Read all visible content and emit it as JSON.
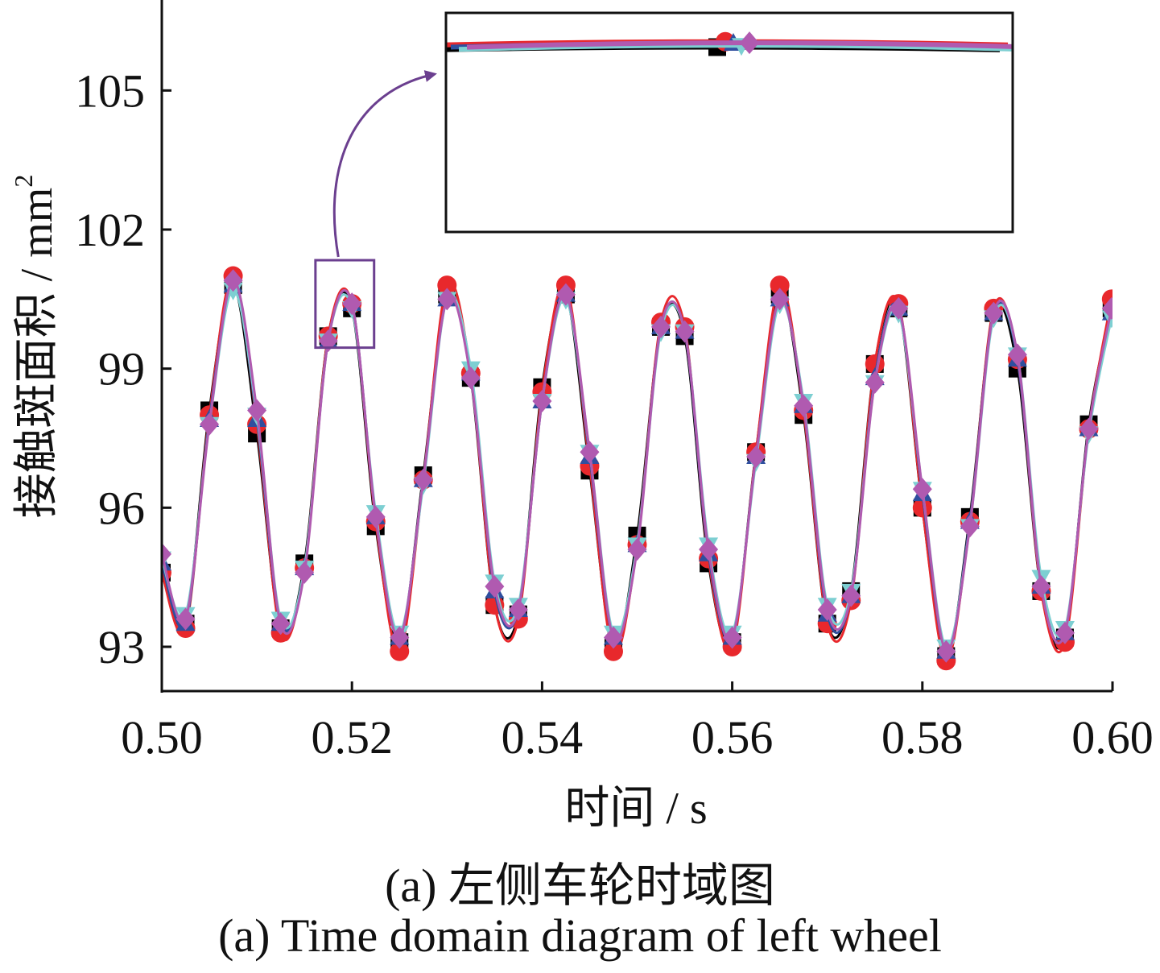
{
  "figure": {
    "caption_zh": "(a) 左侧车轮时域图",
    "caption_en": "(a) Time domain diagram of left wheel"
  },
  "chart_data": {
    "type": "line",
    "xlabel": "时间 / s",
    "ylabel": "接触斑面积 / mm",
    "ylabel_superscript": "2",
    "xlim": [
      0.5,
      0.6
    ],
    "ylim": [
      92.0,
      107.5
    ],
    "x_ticks": [
      0.5,
      0.52,
      0.54,
      0.56,
      0.58,
      0.6
    ],
    "x_tick_labels": [
      "0.50",
      "0.52",
      "0.54",
      "0.56",
      "0.58",
      "0.60"
    ],
    "y_ticks": [
      93,
      96,
      99,
      102,
      105
    ],
    "y_tick_labels": [
      "93",
      "96",
      "99",
      "102",
      "105"
    ],
    "grid": false,
    "inset": {
      "zoom_region": {
        "x": [
          0.5165,
          0.5225
        ],
        "y": [
          99.8,
          101.2
        ]
      },
      "description_colors": [
        "#000000",
        "#e8282c",
        "#2f4e9e",
        "#b05ab0",
        "#7dcfd2"
      ]
    },
    "series": [
      {
        "color": "#000000",
        "marker": "square",
        "offset": -0.1,
        "x": [
          0.5,
          0.5025,
          0.505,
          0.5075,
          0.51,
          0.5125,
          0.515,
          0.5175,
          0.52,
          0.5225,
          0.525,
          0.5275,
          0.53,
          0.5325,
          0.535,
          0.5375,
          0.54,
          0.5425,
          0.545,
          0.5475,
          0.55,
          0.5525,
          0.555,
          0.5575,
          0.56,
          0.5625,
          0.565,
          0.5675,
          0.57,
          0.5725,
          0.575,
          0.5775,
          0.58,
          0.5825,
          0.585,
          0.5875,
          0.59,
          0.5925,
          0.595,
          0.5975,
          0.5999
        ],
        "y": [
          94.6,
          93.5,
          98.1,
          100.8,
          97.6,
          93.4,
          94.8,
          99.7,
          100.3,
          95.6,
          93.1,
          96.7,
          100.6,
          98.8,
          93.9,
          93.7,
          98.6,
          100.6,
          96.8,
          93.0,
          95.4,
          99.9,
          99.7,
          94.8,
          93.1,
          97.2,
          100.6,
          98.0,
          93.5,
          94.2,
          99.1,
          100.3,
          96.0,
          92.8,
          95.8,
          100.2,
          99.0,
          94.2,
          93.2,
          97.8,
          100.3
        ]
      },
      {
        "color": "#e8282c",
        "marker": "circle",
        "offset": 0.05,
        "x": [
          0.5,
          0.5025,
          0.505,
          0.5075,
          0.51,
          0.5125,
          0.515,
          0.5175,
          0.52,
          0.5225,
          0.525,
          0.5275,
          0.53,
          0.5325,
          0.535,
          0.5375,
          0.54,
          0.5425,
          0.545,
          0.5475,
          0.55,
          0.5525,
          0.555,
          0.5575,
          0.56,
          0.5625,
          0.565,
          0.5675,
          0.57,
          0.5725,
          0.575,
          0.5775,
          0.58,
          0.5825,
          0.585,
          0.5875,
          0.59,
          0.5925,
          0.595,
          0.5975,
          0.5999
        ],
        "y": [
          94.6,
          93.4,
          98.0,
          101.0,
          97.8,
          93.3,
          94.7,
          99.7,
          100.4,
          95.7,
          92.9,
          96.6,
          100.8,
          98.9,
          93.9,
          93.6,
          98.5,
          100.8,
          96.9,
          92.9,
          95.2,
          100.0,
          99.9,
          94.9,
          93.0,
          97.2,
          100.8,
          98.1,
          93.5,
          94.0,
          99.1,
          100.4,
          96.0,
          92.7,
          95.7,
          100.3,
          99.2,
          94.2,
          93.1,
          97.7,
          100.5
        ]
      },
      {
        "color": "#2f4e9e",
        "marker": "triangle-up",
        "offset": 0.0,
        "x": [
          0.5,
          0.5025,
          0.505,
          0.5075,
          0.51,
          0.5125,
          0.515,
          0.5175,
          0.52,
          0.5225,
          0.525,
          0.5275,
          0.53,
          0.5325,
          0.535,
          0.5375,
          0.54,
          0.5425,
          0.545,
          0.5475,
          0.55,
          0.5525,
          0.555,
          0.5575,
          0.56,
          0.5625,
          0.565,
          0.5675,
          0.57,
          0.5725,
          0.575,
          0.5775,
          0.58,
          0.5825,
          0.585,
          0.5875,
          0.59,
          0.5925,
          0.595,
          0.5975,
          0.5999
        ],
        "y": [
          94.8,
          93.5,
          97.9,
          100.8,
          97.9,
          93.5,
          94.7,
          99.6,
          100.4,
          95.8,
          93.2,
          96.6,
          100.5,
          98.9,
          94.2,
          93.8,
          98.3,
          100.6,
          97.1,
          93.2,
          95.2,
          99.9,
          99.8,
          95.0,
          93.2,
          97.1,
          100.5,
          98.2,
          93.7,
          94.1,
          98.8,
          100.3,
          96.3,
          92.9,
          95.7,
          100.2,
          99.2,
          94.3,
          93.3,
          97.7,
          100.2
        ]
      },
      {
        "color": "#7dcfd2",
        "marker": "triangle-down",
        "offset": -0.05,
        "x": [
          0.5,
          0.5025,
          0.505,
          0.5075,
          0.51,
          0.5125,
          0.515,
          0.5175,
          0.52,
          0.5225,
          0.525,
          0.5275,
          0.53,
          0.5325,
          0.535,
          0.5375,
          0.54,
          0.5425,
          0.545,
          0.5475,
          0.55,
          0.5525,
          0.555,
          0.5575,
          0.56,
          0.5625,
          0.565,
          0.5675,
          0.57,
          0.5725,
          0.575,
          0.5775,
          0.58,
          0.5825,
          0.585,
          0.5875,
          0.59,
          0.5925,
          0.595,
          0.5975,
          0.5999
        ],
        "y": [
          94.9,
          93.7,
          97.8,
          100.7,
          98.0,
          93.6,
          94.7,
          99.6,
          100.3,
          95.9,
          93.3,
          96.5,
          100.5,
          99.0,
          94.4,
          93.9,
          98.3,
          100.5,
          97.2,
          93.3,
          95.2,
          99.8,
          99.8,
          95.2,
          93.3,
          97.0,
          100.4,
          98.3,
          93.9,
          94.2,
          98.7,
          100.2,
          96.4,
          93.0,
          95.6,
          100.1,
          99.3,
          94.5,
          93.4,
          97.6,
          100.1
        ]
      },
      {
        "color": "#b05ab0",
        "marker": "diamond",
        "offset": 0.02,
        "x": [
          0.5,
          0.5025,
          0.505,
          0.5075,
          0.51,
          0.5125,
          0.515,
          0.5175,
          0.52,
          0.5225,
          0.525,
          0.5275,
          0.53,
          0.5325,
          0.535,
          0.5375,
          0.54,
          0.5425,
          0.545,
          0.5475,
          0.55,
          0.5525,
          0.555,
          0.5575,
          0.56,
          0.5625,
          0.565,
          0.5675,
          0.57,
          0.5725,
          0.575,
          0.5775,
          0.58,
          0.5825,
          0.585,
          0.5875,
          0.59,
          0.5925,
          0.595,
          0.5975,
          0.5999
        ],
        "y": [
          95.0,
          93.6,
          97.8,
          100.9,
          98.1,
          93.5,
          94.6,
          99.6,
          100.4,
          95.8,
          93.2,
          96.6,
          100.5,
          98.8,
          94.3,
          93.8,
          98.3,
          100.6,
          97.2,
          93.2,
          95.1,
          99.9,
          99.8,
          95.1,
          93.2,
          97.1,
          100.5,
          98.2,
          93.8,
          94.1,
          98.7,
          100.3,
          96.4,
          92.9,
          95.6,
          100.2,
          99.3,
          94.3,
          93.3,
          97.7,
          100.3
        ]
      }
    ]
  }
}
